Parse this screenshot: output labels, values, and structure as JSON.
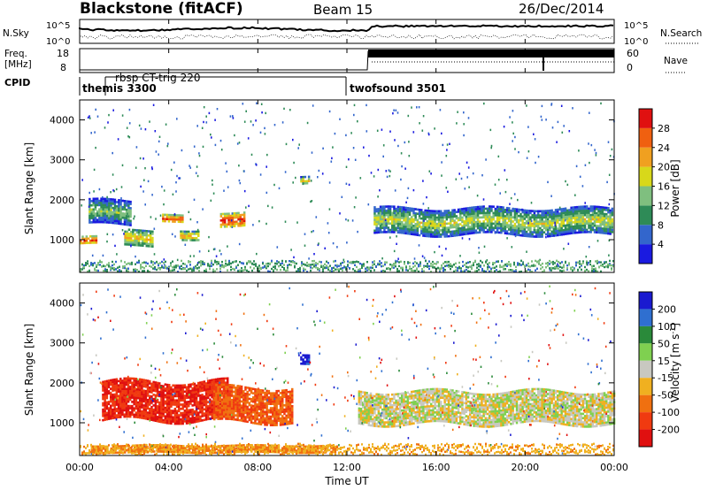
{
  "header": {
    "station": "Blackstone (fitACF)",
    "beam": "Beam 15",
    "date": "26/Dec/2014"
  },
  "top_panels": {
    "nsky_label": "N.Sky",
    "nsky_ticks": [
      "10^5",
      "10^0"
    ],
    "nsearch_label": "N.Search",
    "nsearch_ticks": [
      "10^5",
      "10^0"
    ],
    "freq_label_1": "Freq.",
    "freq_label_2": "[MHz]",
    "freq_ticks": [
      "18",
      "8"
    ],
    "nave_label": "Nave",
    "nave_ticks": [
      "60",
      "0"
    ],
    "cpid_label": "CPID",
    "cpid_entries": [
      {
        "name": "rbsp CT-trig 220",
        "start_hour": 1.15
      },
      {
        "name": "themis 3300",
        "start_hour": 0.0
      },
      {
        "name": "twofsound 3501",
        "start_hour": 12.0
      }
    ]
  },
  "axes": {
    "x_label": "Time UT",
    "x_ticks": [
      "00:00",
      "04:00",
      "08:00",
      "12:00",
      "16:00",
      "20:00",
      "00:00"
    ],
    "y_label": "Slant Range [km]",
    "y_ticks": [
      "1000",
      "2000",
      "3000",
      "4000"
    ]
  },
  "colorbars": {
    "power": {
      "label": "Power [dB]",
      "ticks": [
        "4",
        "8",
        "12",
        "16",
        "20",
        "24",
        "28"
      ],
      "colors": [
        "#1a1ae0",
        "#3366cc",
        "#2e8b57",
        "#7fbf7f",
        "#d8d81a",
        "#f0a020",
        "#f06010",
        "#e01010"
      ]
    },
    "velocity": {
      "label": "Velocity [m s^-1]",
      "ticks": [
        "200",
        "100",
        "50",
        "15",
        "-15",
        "-50",
        "-100",
        "-200"
      ],
      "colors": [
        "#1a1ad0",
        "#2f6fd0",
        "#2a8a3a",
        "#7fd050",
        "#c8c8c0",
        "#f0b020",
        "#f07010",
        "#f03a10",
        "#e01010"
      ]
    }
  },
  "chart_data": [
    {
      "type": "heatmap",
      "title": "Power [dB]",
      "xlabel": "Time UT",
      "ylabel": "Slant Range [km]",
      "xlim_hours": [
        0,
        24
      ],
      "ylim": [
        180,
        4500
      ],
      "clim": [
        0,
        32
      ],
      "features": [
        {
          "t": [
            0.0,
            0.7
          ],
          "r": [
            900,
            1100
          ],
          "v": 28
        },
        {
          "t": [
            0.4,
            2.3
          ],
          "r": [
            1400,
            2000
          ],
          "v": 16
        },
        {
          "t": [
            2.0,
            3.3
          ],
          "r": [
            850,
            1250
          ],
          "v": 22
        },
        {
          "t": [
            3.7,
            4.6
          ],
          "r": [
            1450,
            1650
          ],
          "v": 28
        },
        {
          "t": [
            4.5,
            5.3
          ],
          "r": [
            1000,
            1250
          ],
          "v": 24
        },
        {
          "t": [
            6.3,
            7.4
          ],
          "r": [
            1350,
            1700
          ],
          "v": 30
        },
        {
          "t": [
            9.9,
            10.3
          ],
          "r": [
            2400,
            2600
          ],
          "v": 20
        },
        {
          "t": [
            13.2,
            23.9
          ],
          "r": [
            1150,
            1800
          ],
          "v": 18
        }
      ]
    },
    {
      "type": "heatmap",
      "title": "Velocity [m s^-1]",
      "xlabel": "Time UT",
      "ylabel": "Slant Range [km]",
      "xlim_hours": [
        0,
        24
      ],
      "ylim": [
        180,
        4500
      ],
      "clim": [
        -250,
        250
      ],
      "features": [
        {
          "t": [
            1.0,
            6.6
          ],
          "r": [
            1050,
            2050
          ],
          "v": -200
        },
        {
          "t": [
            6.0,
            9.5
          ],
          "r": [
            1000,
            1900
          ],
          "v": -100
        },
        {
          "t": [
            9.9,
            10.3
          ],
          "r": [
            2450,
            2700
          ],
          "v": 220
        },
        {
          "t": [
            12.5,
            24.0
          ],
          "r": [
            1000,
            1800
          ],
          "v": 0
        },
        {
          "t": [
            0.5,
            11.5
          ],
          "r": [
            250,
            450
          ],
          "v": -60
        }
      ]
    }
  ]
}
